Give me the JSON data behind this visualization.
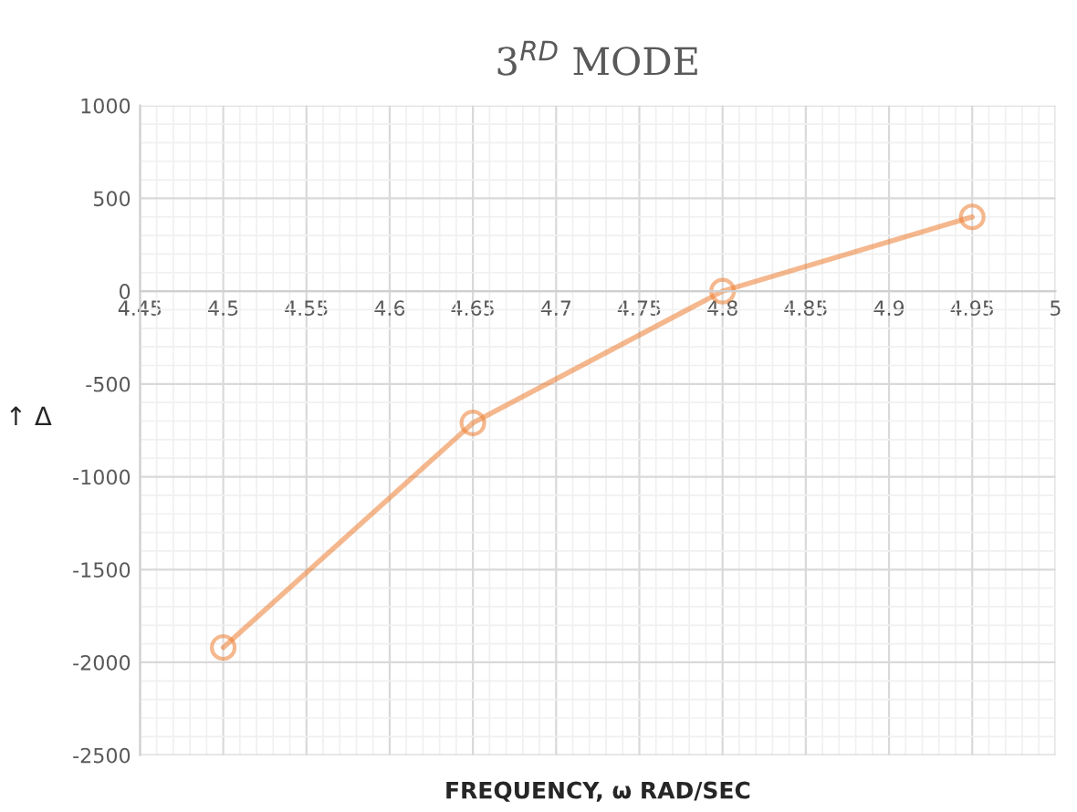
{
  "chart_data": {
    "type": "line",
    "title": "3$^{RD}$ MODE",
    "xlabel": "FREQUENCY, ω RAD/SEC",
    "ylabel": "↑ Δ",
    "x": [
      4.5,
      4.65,
      4.8,
      4.95
    ],
    "series": [
      {
        "color": "#ed7d31",
        "values": [
          -1920,
          -710,
          0,
          400
        ]
      }
    ],
    "xlim": [
      4.45,
      5
    ],
    "xticks": [
      4.45,
      4.5,
      4.55,
      4.6,
      4.65,
      4.7,
      4.75,
      4.8,
      4.85,
      4.9,
      4.95,
      5
    ],
    "ylim": [
      -2500,
      1000
    ],
    "yticks": [
      -2500,
      -2000,
      -1500,
      -1000,
      -500,
      0,
      500,
      1000
    ],
    "grid": true,
    "marker": "circle",
    "line_style": "solid"
  }
}
